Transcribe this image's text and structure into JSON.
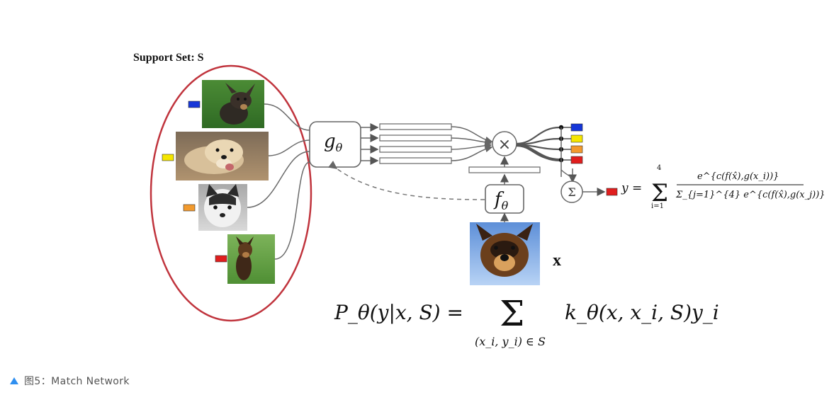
{
  "diagram": {
    "support_set_title": "Support Set: S",
    "embedding_g": "g",
    "embedding_f": "f",
    "theta": "θ",
    "multiply_symbol": "×",
    "sum_symbol": "Σ",
    "query_label": "x",
    "output_formula": {
      "lhs": "y =",
      "sum_upper": "4",
      "sum_lower": "i=1",
      "numerator": "e^{c(f(x̂),g(x_i))}",
      "denominator": "Σ_{j=1}^{4} e^{c(f(x̂),g(x_j))}"
    },
    "main_formula": {
      "lhs": "P_θ(y|x, S) =",
      "sum_under": "(x_i, y_i) ∈ S",
      "rhs": "k_θ(x, x_i, S)y_i"
    },
    "label_colors": [
      "#1636d8",
      "#f5e600",
      "#f29a2e",
      "#e01e1e"
    ],
    "output_color": "#e01e1e",
    "ellipse_color": "#c0343d"
  },
  "caption": {
    "text": "图5：Match Network",
    "marker_color": "#2f8ff0"
  }
}
